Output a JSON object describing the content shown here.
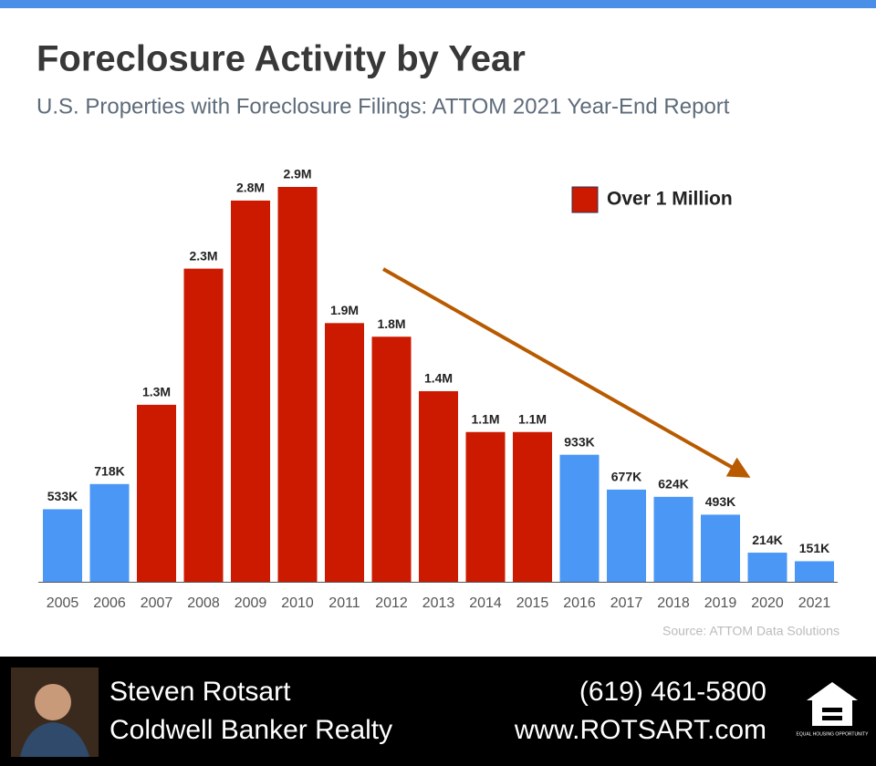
{
  "chart_data": {
    "type": "bar",
    "title": "Foreclosure Activity by Year",
    "subtitle": "U.S. Properties with Foreclosure Filings: ATTOM 2021 Year-End Report",
    "categories": [
      "2005",
      "2006",
      "2007",
      "2008",
      "2009",
      "2010",
      "2011",
      "2012",
      "2013",
      "2014",
      "2015",
      "2016",
      "2017",
      "2018",
      "2019",
      "2020",
      "2021"
    ],
    "values": [
      533000,
      718000,
      1300000,
      2300000,
      2800000,
      2900000,
      1900000,
      1800000,
      1400000,
      1100000,
      1100000,
      933000,
      677000,
      624000,
      493000,
      214000,
      151000
    ],
    "value_labels": [
      "533K",
      "718K",
      "1.3M",
      "2.3M",
      "2.8M",
      "2.9M",
      "1.9M",
      "1.8M",
      "1.4M",
      "1.1M",
      "1.1M",
      "933K",
      "677K",
      "624K",
      "493K",
      "214K",
      "151K"
    ],
    "colors": [
      "#4a97f5",
      "#4a97f5",
      "#cc1a00",
      "#cc1a00",
      "#cc1a00",
      "#cc1a00",
      "#cc1a00",
      "#cc1a00",
      "#cc1a00",
      "#cc1a00",
      "#cc1a00",
      "#4a97f5",
      "#4a97f5",
      "#4a97f5",
      "#4a97f5",
      "#4a97f5",
      "#4a97f5"
    ],
    "legend": {
      "label": "Over 1 Million",
      "color": "#cc1a00"
    },
    "source": "Source: ATTOM Data Solutions"
  },
  "footer": {
    "name": "Steven Rotsart",
    "company": "Coldwell Banker Realty",
    "phone": "(619) 461-5800",
    "website": "www.ROTSART.com",
    "logo_text": "EQUAL HOUSING OPPORTUNITY"
  }
}
